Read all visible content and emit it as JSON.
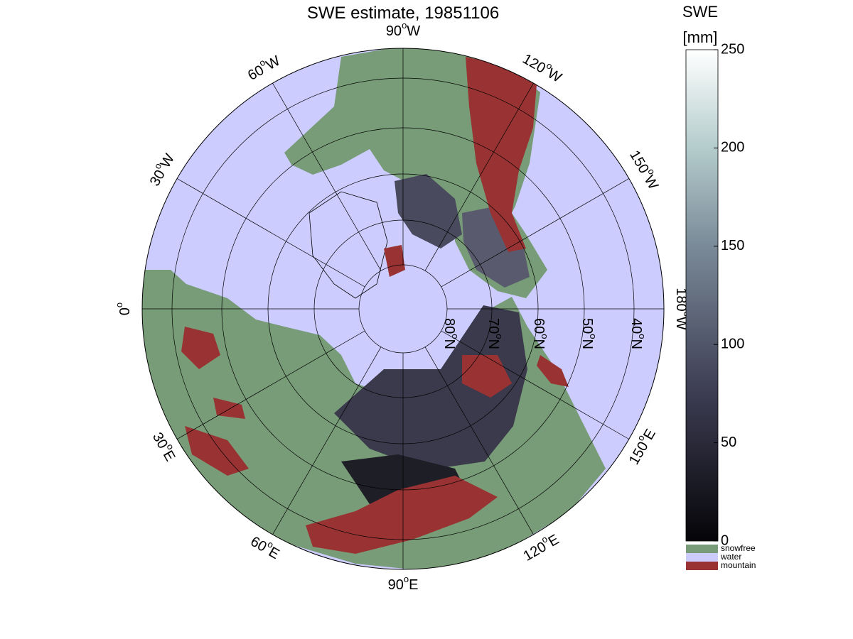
{
  "title": "SWE estimate, 19851106",
  "meridian_labels": [
    {
      "number": "90",
      "sup": "o",
      "dir": "W"
    },
    {
      "number": "60",
      "sup": "o",
      "dir": "W"
    },
    {
      "number": "120",
      "sup": "o",
      "dir": "W"
    },
    {
      "number": "30",
      "sup": "o",
      "dir": "W"
    },
    {
      "number": "150",
      "sup": "o",
      "dir": "W"
    },
    {
      "number": "0",
      "sup": "o"
    },
    {
      "number": "180",
      "sup": "o",
      "dir": "W"
    },
    {
      "number": "30",
      "sup": "o",
      "dir": "E"
    },
    {
      "number": "150",
      "sup": "o",
      "dir": "E"
    },
    {
      "number": "60",
      "sup": "o",
      "dir": "E"
    },
    {
      "number": "120",
      "sup": "o",
      "dir": "E"
    },
    {
      "number": "90",
      "sup": "o",
      "dir": "E"
    }
  ],
  "parallel_labels": [
    {
      "number": "80",
      "sup": "o",
      "dir": "N"
    },
    {
      "number": "70",
      "sup": "o",
      "dir": "N"
    },
    {
      "number": "60",
      "sup": "o",
      "dir": "N"
    },
    {
      "number": "50",
      "sup": "o",
      "dir": "N"
    },
    {
      "number": "40",
      "sup": "o",
      "dir": "N"
    }
  ],
  "colorbar": {
    "title": "SWE",
    "unit": "[mm]",
    "lim": [
      0,
      250
    ],
    "ticks": [
      0,
      50,
      100,
      150,
      200,
      250
    ]
  },
  "legend": [
    {
      "label": "snowfree",
      "color": "#779c77"
    },
    {
      "label": "water",
      "color": "#ccccff"
    },
    {
      "label": "mountain",
      "color": "#993333"
    }
  ]
}
